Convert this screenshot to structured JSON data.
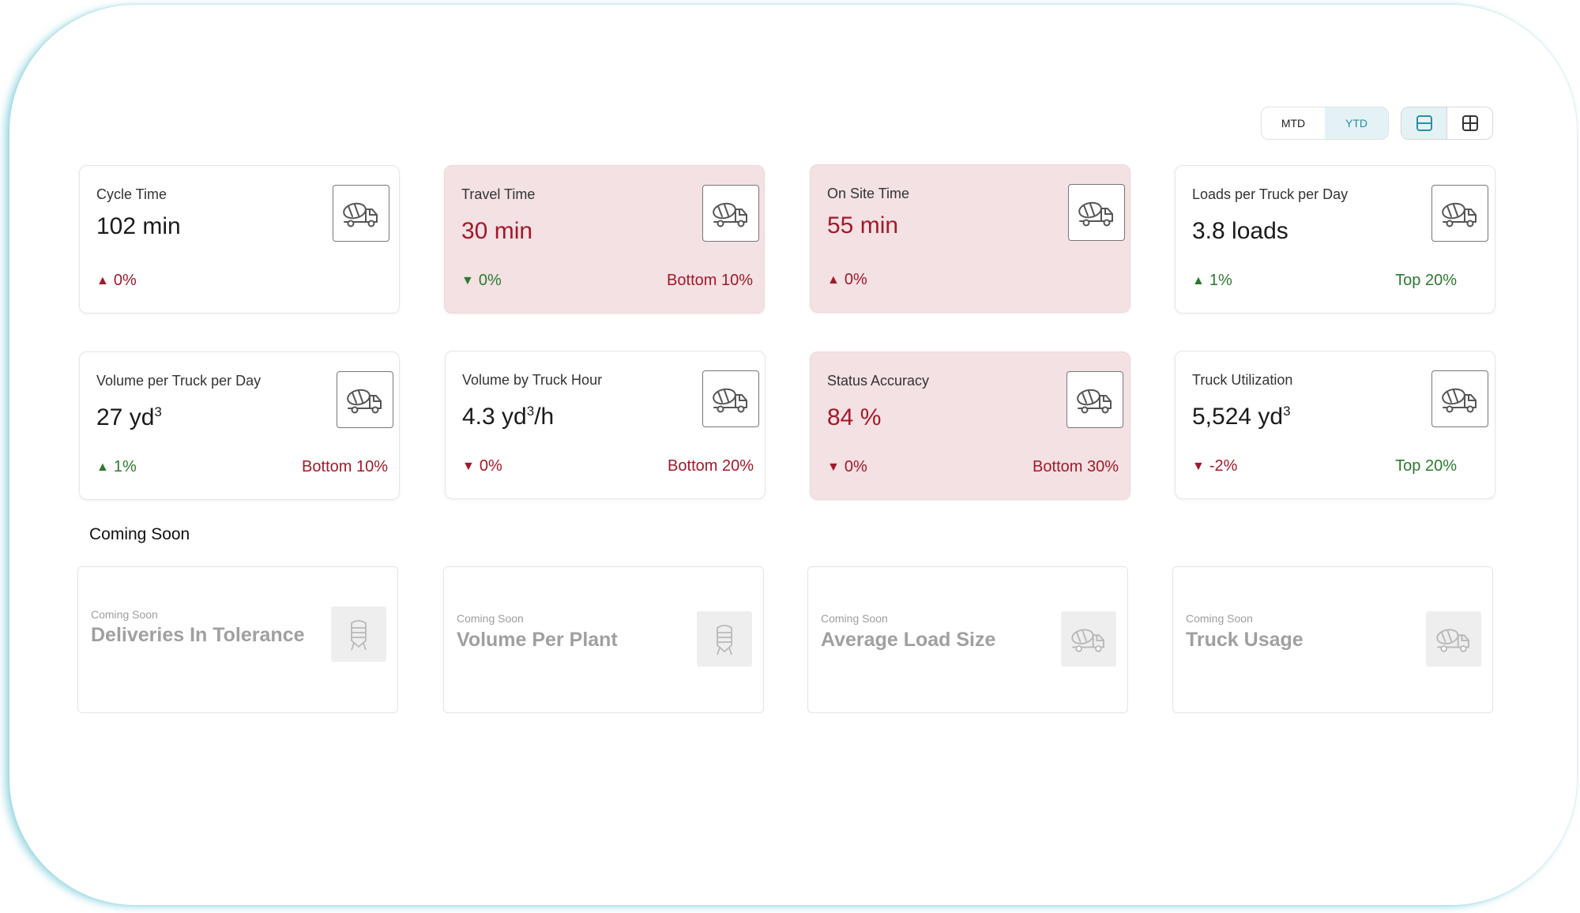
{
  "toolbar": {
    "period_options": [
      "MTD",
      "YTD"
    ],
    "period_selected": "YTD",
    "view_options": [
      "row-layout-icon",
      "grid-layout-icon"
    ],
    "view_selected": "row-layout-icon"
  },
  "colors": {
    "accent": "#2a8ea8",
    "alert_bg": "#f3e1e3",
    "negative": "#a2192a",
    "positive": "#2b7a2e",
    "frame_glow": "#5abed2"
  },
  "metrics": [
    {
      "title": "Cycle Time",
      "value": "102 min",
      "trend": "0%",
      "trend_dir": "up",
      "rank": "",
      "icon": "mixer-truck-icon"
    },
    {
      "title": "Travel Time",
      "value": "30 min",
      "trend": "0%",
      "trend_dir": "down",
      "rank": "Bottom 10%",
      "icon": "mixer-truck-icon"
    },
    {
      "title": "On Site Time",
      "value": "55 min",
      "trend": "0%",
      "trend_dir": "up",
      "rank": "",
      "icon": "mixer-truck-icon"
    },
    {
      "title": "Loads per Truck per Day",
      "value": "3.8 loads",
      "trend": "1%",
      "trend_dir": "up",
      "rank": "Top 20%",
      "icon": "mixer-truck-icon"
    },
    {
      "title": "Volume per Truck per Day",
      "value": "27 yd",
      "value_sup": "3",
      "value_suffix": "",
      "trend": "1%",
      "trend_dir": "up",
      "rank": "Bottom 10%",
      "icon": "mixer-truck-icon"
    },
    {
      "title": "Volume by Truck Hour",
      "value": "4.3 yd",
      "value_sup": "3",
      "value_suffix": "/h",
      "trend": "0%",
      "trend_dir": "down",
      "rank": "Bottom 20%",
      "icon": "mixer-truck-icon"
    },
    {
      "title": "Status Accuracy",
      "value": "84 %",
      "trend": "0%",
      "trend_dir": "down",
      "rank": "Bottom 30%",
      "icon": "mixer-truck-icon"
    },
    {
      "title": "Truck Utilization",
      "value": "5,524 yd",
      "value_sup": "3",
      "value_suffix": "",
      "trend": "-2%",
      "trend_dir": "down",
      "rank": "Top 20%",
      "icon": "mixer-truck-icon"
    }
  ],
  "coming_soon": {
    "section_title": "Coming Soon",
    "cards": [
      {
        "tag": "Coming Soon",
        "title": "Deliveries In Tolerance",
        "icon": "silo-icon"
      },
      {
        "tag": "Coming Soon",
        "title": "Volume Per Plant",
        "icon": "silo-icon"
      },
      {
        "tag": "Coming Soon",
        "title": "Average Load Size",
        "icon": "mixer-truck-icon"
      },
      {
        "tag": "Coming Soon",
        "title": "Truck Usage",
        "icon": "mixer-truck-icon"
      }
    ]
  }
}
